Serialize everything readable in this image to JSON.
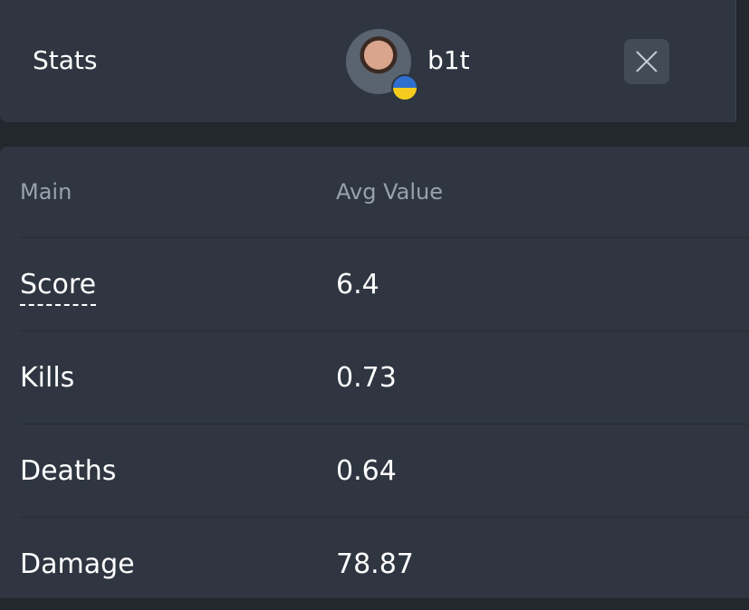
{
  "header": {
    "title": "Stats",
    "player": "b1t"
  },
  "table": {
    "columns": [
      "Main",
      "Avg Value"
    ],
    "rows": [
      [
        "Score",
        "6.4"
      ],
      [
        "Kills",
        "0.73"
      ],
      [
        "Deaths",
        "0.64"
      ],
      [
        "Damage",
        "78.87"
      ]
    ]
  }
}
